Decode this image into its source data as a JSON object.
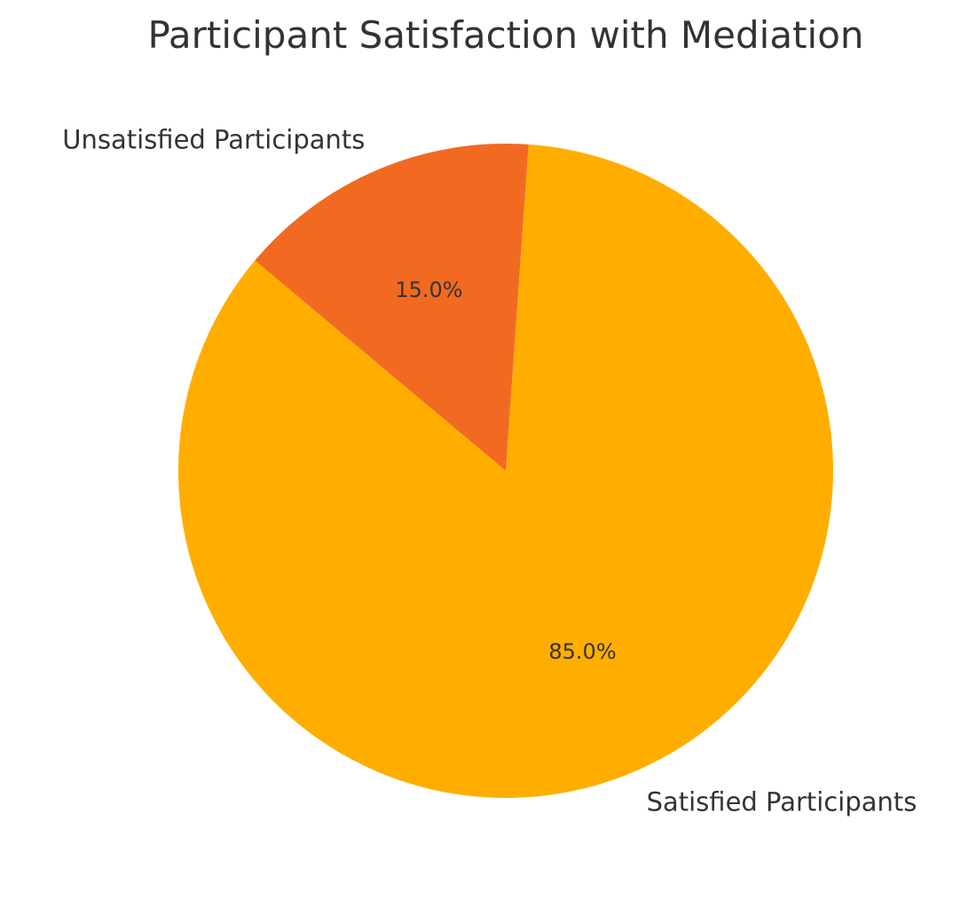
{
  "chart_data": {
    "type": "pie",
    "title": "Participant Satisfaction with Mediation",
    "categories": [
      "Satisfied Participants",
      "Unsatisfied Participants"
    ],
    "values": [
      85.0,
      15.0
    ],
    "value_labels": [
      "85.0%",
      "15.0%"
    ],
    "colors": [
      "#FFAE00",
      "#F26A21"
    ],
    "legend": "none"
  }
}
